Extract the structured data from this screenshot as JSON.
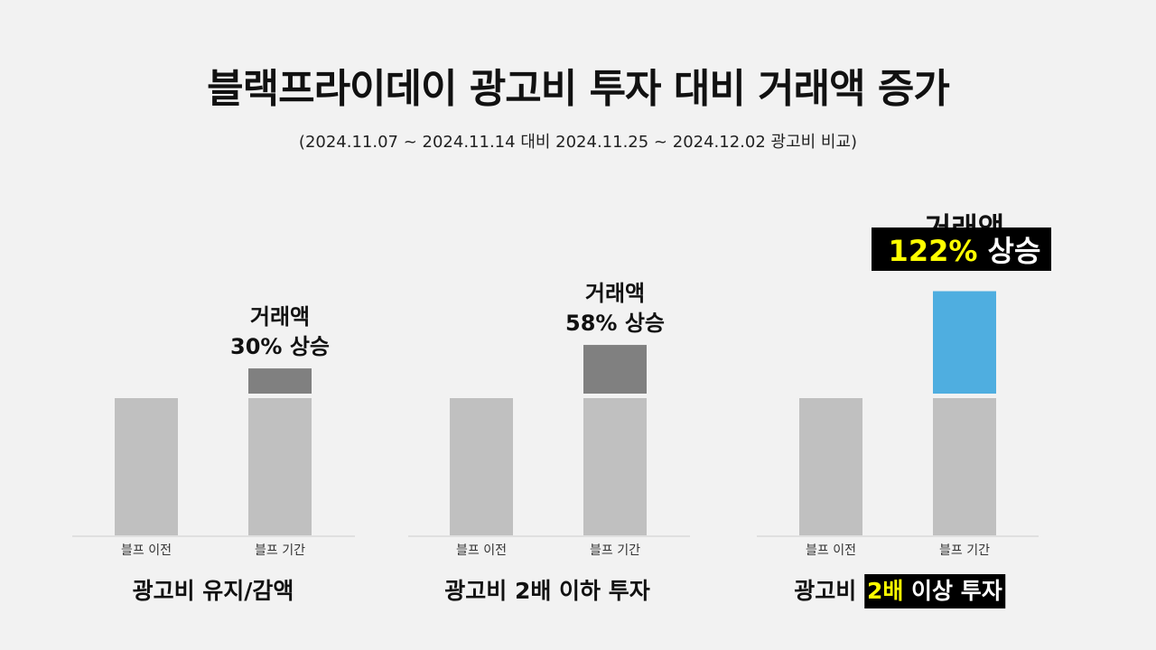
{
  "title": "블랙프라이데이 광고비 투자 대비 거래액 증가",
  "subtitle": "(2024.11.07 ~ 2024.11.14 대비 2024.11.25  ~ 2024.12.02 광고비 비교)",
  "colors": {
    "base_bar": "#c0c0c0",
    "increase_gray": "#808080",
    "increase_blue": "#4faee0",
    "highlight_bg": "#000000",
    "highlight_yellow": "#ffff00"
  },
  "chart_data": [
    {
      "type": "bar",
      "group_label": "광고비 유지/감액",
      "categories": [
        "블프 이전",
        "블프 기간"
      ],
      "base_value": 100,
      "increase_pct": 30,
      "annotation_line1": "거래액",
      "annotation_line2": "30% 상승",
      "increase_color": "#808080"
    },
    {
      "type": "bar",
      "group_label": "광고비 2배 이하 투자",
      "categories": [
        "블프 이전",
        "블프 기간"
      ],
      "base_value": 100,
      "increase_pct": 58,
      "annotation_line1": "거래액",
      "annotation_line2": "58% 상승",
      "increase_color": "#808080"
    },
    {
      "type": "bar",
      "group_label_parts": [
        "광고비 ",
        "2배",
        " 이상 투자"
      ],
      "categories": [
        "블프 이전",
        "블프 기간"
      ],
      "base_value": 100,
      "increase_pct": 122,
      "annotation_line1": "거래액",
      "annotation_highlight": "122%",
      "annotation_rest": " 상승",
      "increase_color": "#4faee0"
    }
  ]
}
